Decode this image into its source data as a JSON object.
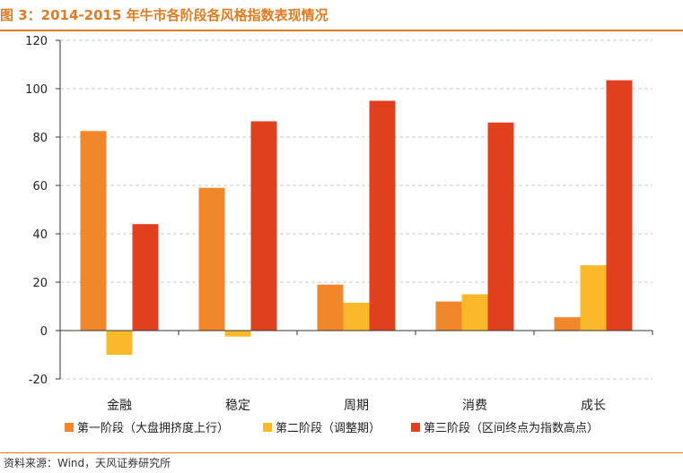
{
  "header": {
    "title": "图 3：2014-2015 年牛市各阶段各风格指数表现情况"
  },
  "footer": {
    "source": "资料来源：Wind，天风证券研究所"
  },
  "colors": {
    "accent": "#e07b22",
    "grid": "#c9c9c9",
    "axis": "#333333"
  },
  "chart_data": {
    "type": "bar",
    "title": "",
    "xlabel": "",
    "ylabel": "",
    "ylim": [
      -20,
      120
    ],
    "yticks": [
      -20,
      0,
      20,
      40,
      60,
      80,
      100,
      120
    ],
    "grid": true,
    "legend_position": "bottom",
    "categories": [
      "金融",
      "稳定",
      "周期",
      "消费",
      "成长"
    ],
    "series": [
      {
        "name": "第一阶段（大盘拥挤度上行）",
        "color": "#f0872a",
        "values": [
          82.5,
          59,
          19,
          12,
          5.5
        ]
      },
      {
        "name": "第二阶段（调整期）",
        "color": "#fbb92a",
        "values": [
          -10,
          -2.5,
          11.5,
          15,
          27
        ]
      },
      {
        "name": "第三阶段（区间终点为指数高点）",
        "color": "#e0401e",
        "values": [
          44,
          86.5,
          95,
          86,
          103.5
        ]
      }
    ]
  }
}
